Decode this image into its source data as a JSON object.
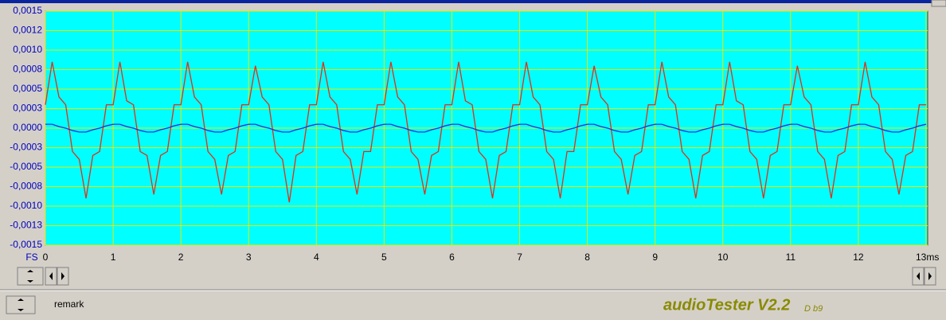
{
  "chart_data": {
    "type": "line",
    "xlabel": "FS",
    "x": [
      0,
      0.1,
      0.2,
      0.3,
      0.4,
      0.5,
      0.6,
      0.7,
      0.8,
      0.9,
      1,
      1.1,
      1.2,
      1.3,
      1.4,
      1.5,
      1.6,
      1.7,
      1.8,
      1.9,
      2,
      2.1,
      2.2,
      2.3,
      2.4,
      2.5,
      2.6,
      2.7,
      2.8,
      2.9,
      3,
      3.1,
      3.2,
      3.3,
      3.4,
      3.5,
      3.6,
      3.7,
      3.8,
      3.9,
      4,
      4.1,
      4.2,
      4.3,
      4.4,
      4.5,
      4.6,
      4.7,
      4.8,
      4.9,
      5,
      5.1,
      5.2,
      5.3,
      5.4,
      5.5,
      5.6,
      5.7,
      5.8,
      5.9,
      6,
      6.1,
      6.2,
      6.3,
      6.4,
      6.5,
      6.6,
      6.7,
      6.8,
      6.9,
      7,
      7.1,
      7.2,
      7.3,
      7.4,
      7.5,
      7.6,
      7.7,
      7.8,
      7.9,
      8,
      8.1,
      8.2,
      8.3,
      8.4,
      8.5,
      8.6,
      8.7,
      8.8,
      8.9,
      9,
      9.1,
      9.2,
      9.3,
      9.4,
      9.5,
      9.6,
      9.7,
      9.8,
      9.9,
      10,
      10.1,
      10.2,
      10.3,
      10.4,
      10.5,
      10.6,
      10.7,
      10.8,
      10.9,
      11,
      11.1,
      11.2,
      11.3,
      11.4,
      11.5,
      11.6,
      11.7,
      11.8,
      11.9,
      12,
      12.1,
      12.2,
      12.3,
      12.4,
      12.5,
      12.6,
      12.7,
      12.8,
      12.9,
      13
    ],
    "series": [
      {
        "color": "#e03018",
        "values": [
          0.0003,
          0.00085,
          0.0004,
          0.0003,
          -0.0003,
          -0.0004,
          -0.0009,
          -0.00035,
          -0.0003,
          0.0003,
          0.0003,
          0.00085,
          0.00035,
          0.0003,
          -0.0003,
          -0.00035,
          -0.00085,
          -0.00035,
          -0.0003,
          0.0003,
          0.0003,
          0.00085,
          0.0004,
          0.0003,
          -0.0003,
          -0.0004,
          -0.00085,
          -0.00035,
          -0.0003,
          0.0003,
          0.0003,
          0.0008,
          0.0004,
          0.0003,
          -0.0003,
          -0.0004,
          -0.00095,
          -0.00035,
          -0.0003,
          0.0003,
          0.0003,
          0.00085,
          0.0004,
          0.0003,
          -0.0003,
          -0.0004,
          -0.00085,
          -0.0003,
          -0.0003,
          0.0003,
          0.0003,
          0.00085,
          0.0004,
          0.0003,
          -0.0003,
          -0.0004,
          -0.00085,
          -0.00035,
          -0.0003,
          0.0003,
          0.0003,
          0.00085,
          0.00035,
          0.0003,
          -0.0003,
          -0.0004,
          -0.0009,
          -0.00035,
          -0.0003,
          0.0003,
          0.0003,
          0.00085,
          0.0004,
          0.0003,
          -0.0003,
          -0.0004,
          -0.0009,
          -0.0003,
          -0.0003,
          0.0003,
          0.0003,
          0.0008,
          0.0004,
          0.0003,
          -0.0003,
          -0.0004,
          -0.00085,
          -0.00035,
          -0.0003,
          0.0003,
          0.0003,
          0.00085,
          0.0004,
          0.0003,
          -0.0003,
          -0.0004,
          -0.0009,
          -0.00035,
          -0.0003,
          0.0003,
          0.0003,
          0.00085,
          0.00035,
          0.0003,
          -0.0003,
          -0.0004,
          -0.0009,
          -0.00035,
          -0.0003,
          0.0003,
          0.0003,
          0.0008,
          0.0004,
          0.0003,
          -0.0003,
          -0.0004,
          -0.0009,
          -0.00035,
          -0.0003,
          0.0003,
          0.0003,
          0.00085,
          0.0004,
          0.0003,
          -0.0003,
          -0.0004,
          -0.00085,
          -0.00035,
          -0.0003,
          0.0003,
          0.0003
        ]
      },
      {
        "color": "#1830e0",
        "values": [
          5e-05,
          5e-05,
          2e-05,
          0,
          -3e-05,
          -5e-05,
          -5e-05,
          -2e-05,
          0,
          3e-05,
          5e-05,
          5e-05,
          2e-05,
          0,
          -3e-05,
          -5e-05,
          -5e-05,
          -2e-05,
          0,
          3e-05,
          5e-05,
          5e-05,
          2e-05,
          0,
          -3e-05,
          -5e-05,
          -5e-05,
          -2e-05,
          0,
          3e-05,
          5e-05,
          5e-05,
          2e-05,
          0,
          -3e-05,
          -5e-05,
          -5e-05,
          -2e-05,
          0,
          3e-05,
          5e-05,
          5e-05,
          2e-05,
          0,
          -3e-05,
          -5e-05,
          -5e-05,
          -2e-05,
          0,
          3e-05,
          5e-05,
          5e-05,
          2e-05,
          0,
          -3e-05,
          -5e-05,
          -5e-05,
          -2e-05,
          0,
          3e-05,
          5e-05,
          5e-05,
          2e-05,
          0,
          -3e-05,
          -5e-05,
          -5e-05,
          -2e-05,
          0,
          3e-05,
          5e-05,
          5e-05,
          2e-05,
          0,
          -3e-05,
          -5e-05,
          -5e-05,
          -2e-05,
          0,
          3e-05,
          5e-05,
          5e-05,
          2e-05,
          0,
          -3e-05,
          -5e-05,
          -5e-05,
          -2e-05,
          0,
          3e-05,
          5e-05,
          5e-05,
          2e-05,
          0,
          -3e-05,
          -5e-05,
          -5e-05,
          -2e-05,
          0,
          3e-05,
          5e-05,
          5e-05,
          2e-05,
          0,
          -3e-05,
          -5e-05,
          -5e-05,
          -2e-05,
          0,
          3e-05,
          5e-05,
          5e-05,
          2e-05,
          0,
          -3e-05,
          -5e-05,
          -5e-05,
          -2e-05,
          0,
          3e-05,
          5e-05,
          5e-05,
          2e-05,
          0,
          -3e-05,
          -5e-05,
          -5e-05,
          -2e-05,
          0,
          3e-05,
          5e-05
        ]
      }
    ],
    "xlim": [
      0,
      13
    ],
    "xticks": [
      0,
      1,
      2,
      3,
      4,
      5,
      6,
      7,
      8,
      9,
      10,
      11,
      12,
      {
        "value": 13,
        "label": "13ms"
      }
    ],
    "ylim": [
      -0.0015,
      0.0015
    ],
    "yticks": [
      {
        "value": 0.0015,
        "label": "0,0015"
      },
      {
        "value": 0.00125,
        "label": "0,0012"
      },
      {
        "value": 0.001,
        "label": "0,0010"
      },
      {
        "value": 0.00075,
        "label": "0,0008"
      },
      {
        "value": 0.0005,
        "label": "0,0005"
      },
      {
        "value": 0.00025,
        "label": "0,0003"
      },
      {
        "value": 0,
        "label": "0,0000"
      },
      {
        "value": -0.00025,
        "label": "-0,0003"
      },
      {
        "value": -0.0005,
        "label": "-0,0005"
      },
      {
        "value": -0.00075,
        "label": "-0,0008"
      },
      {
        "value": -0.001,
        "label": "-0,0010"
      },
      {
        "value": -0.00125,
        "label": "-0,0013"
      },
      {
        "value": -0.0015,
        "label": "-0,0015"
      }
    ],
    "grid": true,
    "grid_color": "#e8e800",
    "background": "#00ffff"
  },
  "controls": {
    "remark": "remark",
    "app_name": "audioTester V2.2",
    "build": "D b9"
  }
}
